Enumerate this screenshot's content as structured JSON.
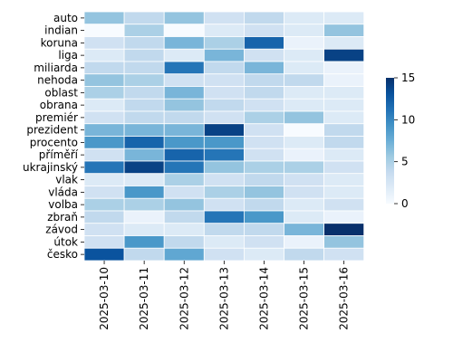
{
  "chart_data": {
    "type": "heatmap",
    "title": "",
    "xlabel": "",
    "ylabel": "",
    "x_categories": [
      "2025-03-10",
      "2025-03-11",
      "2025-03-12",
      "2025-03-13",
      "2025-03-14",
      "2025-03-15",
      "2025-03-16"
    ],
    "y_categories": [
      "auto",
      "indian",
      "koruna",
      "liga",
      "miliarda",
      "nehoda",
      "oblast",
      "obrana",
      "premiér",
      "prezident",
      "procento",
      "příměří",
      "ukrajinský",
      "vlak",
      "vláda",
      "volba",
      "zbraň",
      "závod",
      "útok",
      "česko"
    ],
    "values": [
      [
        6,
        4,
        6,
        3,
        4,
        2,
        2
      ],
      [
        0,
        5,
        0,
        2,
        3,
        2,
        6
      ],
      [
        3,
        4,
        7,
        5,
        12,
        1,
        2
      ],
      [
        2,
        4,
        2,
        7,
        3,
        2,
        14
      ],
      [
        4,
        4,
        11,
        4,
        7,
        2,
        1
      ],
      [
        6,
        5,
        3,
        3,
        4,
        4,
        1
      ],
      [
        5,
        4,
        7,
        3,
        4,
        2,
        2
      ],
      [
        2,
        4,
        6,
        4,
        3,
        2,
        2
      ],
      [
        3,
        4,
        4,
        3,
        5,
        6,
        2
      ],
      [
        7,
        7,
        7,
        14,
        3,
        0,
        4
      ],
      [
        9,
        12,
        9,
        9,
        3,
        2,
        4
      ],
      [
        3,
        7,
        12,
        11,
        3,
        1,
        2
      ],
      [
        11,
        14,
        11,
        6,
        5,
        5,
        3
      ],
      [
        2,
        2,
        5,
        3,
        4,
        3,
        2
      ],
      [
        3,
        9,
        3,
        5,
        6,
        3,
        2
      ],
      [
        5,
        5,
        6,
        3,
        4,
        2,
        3
      ],
      [
        4,
        1,
        4,
        11,
        9,
        2,
        1
      ],
      [
        3,
        2,
        2,
        4,
        4,
        7,
        15
      ],
      [
        3,
        9,
        4,
        2,
        3,
        1,
        6
      ],
      [
        13,
        4,
        8,
        3,
        2,
        4,
        3
      ]
    ],
    "colorbar": {
      "min": 0,
      "max": 15,
      "ticks": [
        0,
        5,
        10,
        15
      ],
      "colormap": "Blues"
    },
    "grid_color": "#ffffff"
  }
}
